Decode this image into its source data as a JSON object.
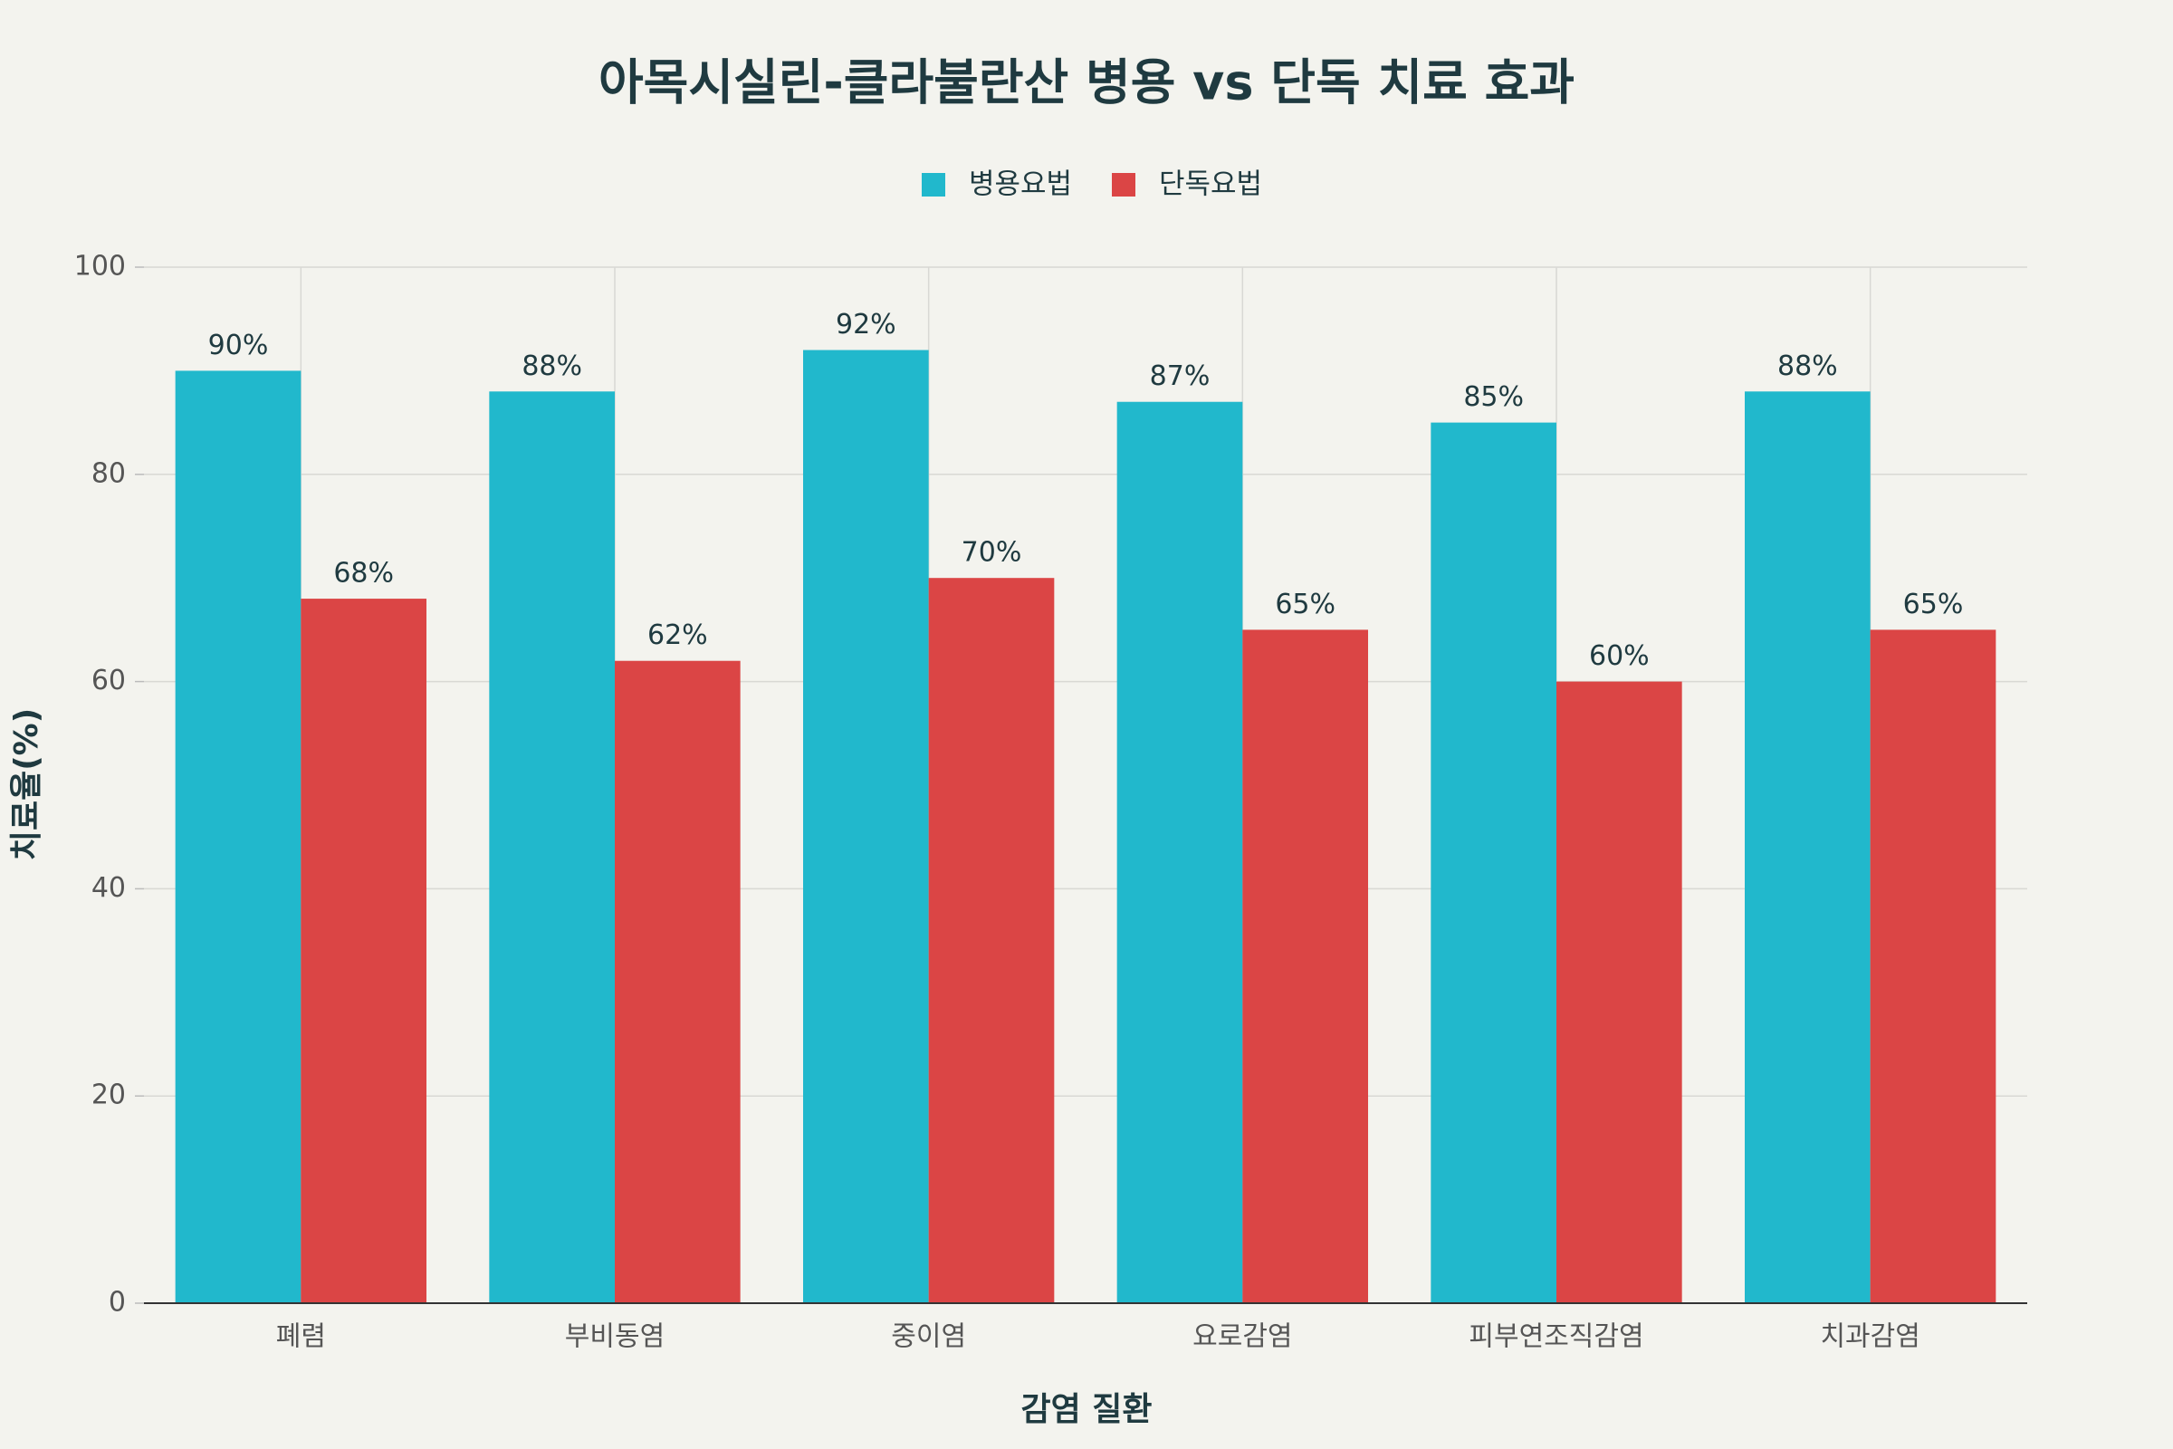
{
  "chart_data": {
    "type": "bar",
    "title": "아목시실린-클라불란산 병용 vs 단독 치료 효과",
    "x_label": "감염 질환",
    "y_label": "치료율(%)",
    "categories": [
      "폐렴",
      "부비동염",
      "중이염",
      "요로감염",
      "피부연조직감염",
      "치과감염"
    ],
    "series": [
      {
        "name": "병용요법",
        "color": "#21b8cc",
        "values": [
          90,
          88,
          92,
          87,
          85,
          88
        ],
        "value_labels": [
          "90%",
          "88%",
          "92%",
          "87%",
          "85%",
          "88%"
        ]
      },
      {
        "name": "단독요법",
        "color": "#db4545",
        "values": [
          68,
          62,
          70,
          65,
          60,
          65
        ],
        "value_labels": [
          "68%",
          "62%",
          "70%",
          "65%",
          "60%",
          "65%"
        ]
      }
    ],
    "ylim": [
      0,
      100
    ],
    "yticks": [
      0,
      20,
      40,
      60,
      80,
      100
    ],
    "grid": true,
    "legend": "top"
  }
}
